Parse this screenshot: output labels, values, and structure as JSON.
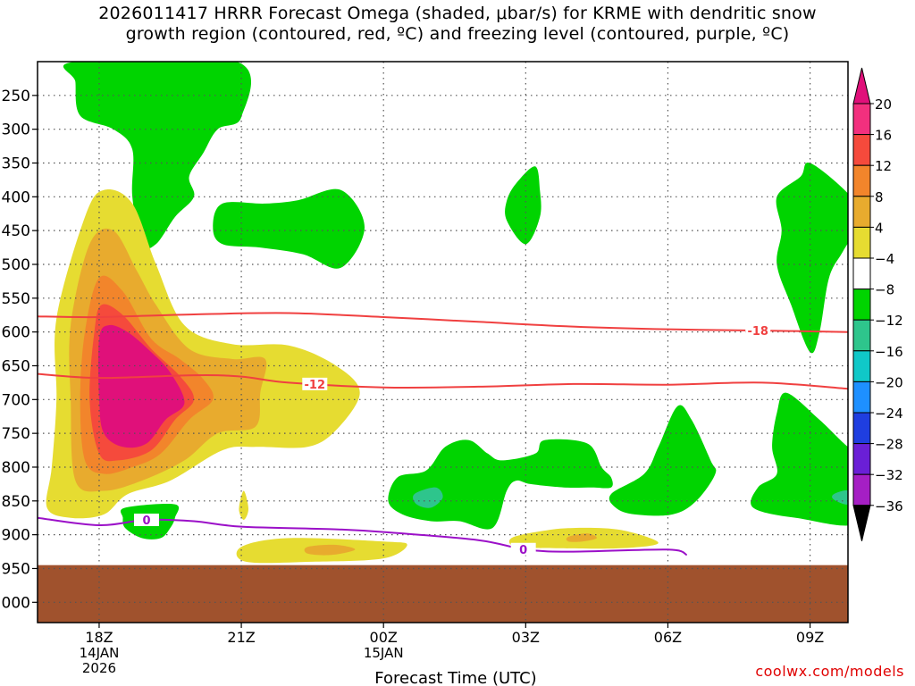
{
  "title_line1": "2026011417 HRRR Forecast Omega (shaded, μbar/s) for KRME with dendritic snow",
  "title_line2": "growth region (contoured, red, ºC) and freezing level (contoured, purple, ºC)",
  "credit": "coolwx.com/models",
  "chart_data": {
    "type": "time-height cross section",
    "title": "2026011417 HRRR Forecast Omega (shaded, μbar/s) for KRME with dendritic snow growth region (contoured, red, ºC) and freezing level (contoured, purple, ºC)",
    "xlabel": "Forecast Time (UTC)",
    "ylabel": "",
    "grid": true,
    "x_range_hours_from_18Z": [
      -1.3,
      15.8
    ],
    "y_range_hPa": [
      1030,
      200
    ],
    "x_ticks": [
      {
        "hours": 0,
        "label": "18Z",
        "sub1": "14JAN",
        "sub2": "2026"
      },
      {
        "hours": 3,
        "label": "21Z",
        "sub1": "",
        "sub2": ""
      },
      {
        "hours": 6,
        "label": "00Z",
        "sub1": "15JAN",
        "sub2": ""
      },
      {
        "hours": 9,
        "label": "03Z",
        "sub1": "",
        "sub2": ""
      },
      {
        "hours": 12,
        "label": "06Z",
        "sub1": "",
        "sub2": ""
      },
      {
        "hours": 15,
        "label": "09Z",
        "sub1": "",
        "sub2": ""
      }
    ],
    "y_ticks": [
      {
        "p": 250,
        "label": "250"
      },
      {
        "p": 300,
        "label": "300"
      },
      {
        "p": 350,
        "label": "350"
      },
      {
        "p": 400,
        "label": "400"
      },
      {
        "p": 450,
        "label": "450"
      },
      {
        "p": 500,
        "label": "500"
      },
      {
        "p": 550,
        "label": "550"
      },
      {
        "p": 600,
        "label": "600"
      },
      {
        "p": 650,
        "label": "650"
      },
      {
        "p": 700,
        "label": "700"
      },
      {
        "p": 750,
        "label": "750"
      },
      {
        "p": 800,
        "label": "800"
      },
      {
        "p": 850,
        "label": "850"
      },
      {
        "p": 900,
        "label": "900"
      },
      {
        "p": 950,
        "label": "950"
      },
      {
        "p": 1000,
        "label": "1000"
      }
    ],
    "colorbar": [
      {
        "label": "20",
        "color": "#f2307e"
      },
      {
        "label": "16",
        "color": "#f54a3c"
      },
      {
        "label": "12",
        "color": "#f2852b"
      },
      {
        "label": "8",
        "color": "#e8ab2e"
      },
      {
        "label": "4",
        "color": "#e6dc31"
      },
      {
        "label": "−4",
        "color": "#ffffff"
      },
      {
        "label": "−8",
        "color": "#00d400"
      },
      {
        "label": "−12",
        "color": "#2ec58c"
      },
      {
        "label": "−16",
        "color": "#10c8c8"
      },
      {
        "label": "−20",
        "color": "#1e90ff"
      },
      {
        "label": "−24",
        "color": "#1f3ee0"
      },
      {
        "label": "−28",
        "color": "#6a1fd6"
      },
      {
        "label": "−32",
        "color": "#a51fc4"
      },
      {
        "label": "−36",
        "color": "#a9a9a9"
      }
    ],
    "colorbar_top_color": "#e0107a",
    "colorbar_bottom_color": "#000000",
    "terrain_color": "#a0522d",
    "contours": [
      {
        "name": "-18C",
        "color": "#f04040",
        "label": "-18",
        "points": [
          [
            -1.3,
            577
          ],
          [
            0,
            578
          ],
          [
            2,
            574
          ],
          [
            4,
            572
          ],
          [
            6,
            578
          ],
          [
            8,
            585
          ],
          [
            10,
            592
          ],
          [
            12,
            596
          ],
          [
            14,
            598
          ],
          [
            15.8,
            600
          ]
        ],
        "label_at_hours": 13.9
      },
      {
        "name": "-12C",
        "color": "#f04040",
        "label": "-12",
        "points": [
          [
            -1.3,
            662
          ],
          [
            0,
            668
          ],
          [
            2,
            664
          ],
          [
            3,
            666
          ],
          [
            4,
            675
          ],
          [
            6,
            682
          ],
          [
            8,
            681
          ],
          [
            10,
            677
          ],
          [
            12,
            678
          ],
          [
            14,
            675
          ],
          [
            15.8,
            684
          ]
        ],
        "label_at_hours": 4.55
      },
      {
        "name": "freezing level 0C",
        "color": "#9b10c8",
        "label": "0",
        "points": [
          [
            -1.3,
            875
          ],
          [
            0,
            886
          ],
          [
            1,
            878
          ],
          [
            2,
            880
          ],
          [
            3,
            888
          ],
          [
            5,
            892
          ],
          [
            6,
            896
          ],
          [
            8,
            908
          ],
          [
            9,
            922
          ],
          [
            10,
            925
          ],
          [
            12,
            922
          ],
          [
            12.4,
            930
          ]
        ],
        "label_at_hours": 1.0,
        "label2": "0",
        "label2_at_hours": 8.95
      }
    ],
    "omega_regions": [
      {
        "value_band": "-8 to -4",
        "color": "#00d400",
        "points": [
          [
            -0.5,
            200
          ],
          [
            2.9,
            200
          ],
          [
            3,
            282
          ],
          [
            2.5,
            300
          ],
          [
            2.2,
            335
          ],
          [
            1.9,
            370
          ],
          [
            2,
            400
          ],
          [
            1.6,
            430
          ],
          [
            1.2,
            470
          ],
          [
            0.9,
            470
          ],
          [
            0.7,
            400
          ],
          [
            0.7,
            330
          ],
          [
            0.3,
            300
          ],
          [
            -0.4,
            280
          ],
          [
            -0.5,
            230
          ]
        ]
      },
      {
        "value_band": "-8 to -4",
        "color": "#00d400",
        "points": [
          [
            2.6,
            410
          ],
          [
            3.5,
            410
          ],
          [
            4.2,
            405
          ],
          [
            5.1,
            390
          ],
          [
            5.6,
            445
          ],
          [
            5.1,
            505
          ],
          [
            4.3,
            485
          ],
          [
            3.4,
            475
          ],
          [
            2.6,
            470
          ],
          [
            2.4,
            445
          ]
        ]
      },
      {
        "value_band": "-8 to -4",
        "color": "#00d400",
        "points": [
          [
            8.6,
            406
          ],
          [
            8.8,
            380
          ],
          [
            9.2,
            355
          ],
          [
            9.3,
            390
          ],
          [
            9.3,
            430
          ],
          [
            9,
            470
          ],
          [
            8.6,
            435
          ]
        ]
      },
      {
        "value_band": "-8 to -4",
        "color": "#00d400",
        "points": [
          [
            14.3,
            400
          ],
          [
            14.8,
            370
          ],
          [
            15,
            350
          ],
          [
            15.8,
            395
          ],
          [
            16.1,
            430
          ],
          [
            15.7,
            480
          ],
          [
            15.4,
            520
          ],
          [
            15.2,
            600
          ],
          [
            15,
            630
          ],
          [
            14.6,
            560
          ],
          [
            14.3,
            500
          ],
          [
            14.4,
            450
          ]
        ]
      },
      {
        "value_band": "-8 to -4",
        "color": "#00d400",
        "points": [
          [
            6.1,
            850
          ],
          [
            6.3,
            815
          ],
          [
            6.9,
            805
          ],
          [
            7.3,
            770
          ],
          [
            7.8,
            760
          ],
          [
            8.2,
            780
          ],
          [
            8.5,
            790
          ],
          [
            9.2,
            780
          ],
          [
            9.4,
            760
          ],
          [
            10.3,
            765
          ],
          [
            10.6,
            800
          ],
          [
            10.8,
            815
          ],
          [
            10.8,
            830
          ],
          [
            10.4,
            830
          ],
          [
            9.8,
            830
          ],
          [
            9.1,
            825
          ],
          [
            8.8,
            820
          ],
          [
            8.6,
            835
          ],
          [
            8.3,
            890
          ],
          [
            7.6,
            880
          ],
          [
            7,
            880
          ],
          [
            6.4,
            870
          ]
        ]
      },
      {
        "value_band": "-8 to -4",
        "color": "#00d400",
        "points": [
          [
            10.8,
            840
          ],
          [
            11.5,
            810
          ],
          [
            11.8,
            770
          ],
          [
            12.2,
            710
          ],
          [
            12.5,
            730
          ],
          [
            12.9,
            790
          ],
          [
            13,
            810
          ],
          [
            12.6,
            850
          ],
          [
            12.1,
            870
          ],
          [
            11.3,
            870
          ],
          [
            10.9,
            860
          ]
        ]
      },
      {
        "value_band": "-8 to -4",
        "color": "#00d400",
        "points": [
          [
            14.3,
            720
          ],
          [
            14.5,
            690
          ],
          [
            15.2,
            730
          ],
          [
            15.8,
            770
          ],
          [
            16.1,
            780
          ],
          [
            16.1,
            880
          ],
          [
            14.7,
            875
          ],
          [
            13.8,
            860
          ],
          [
            13.9,
            830
          ],
          [
            14.3,
            810
          ],
          [
            14.2,
            770
          ]
        ]
      },
      {
        "value_band": "-8 to -4",
        "color": "#00d400",
        "points": [
          [
            0.55,
            860
          ],
          [
            1.6,
            855
          ],
          [
            1.6,
            875
          ],
          [
            1.5,
            890
          ],
          [
            1.3,
            905
          ],
          [
            0.9,
            905
          ],
          [
            0.55,
            890
          ],
          [
            0.5,
            875
          ]
        ]
      },
      {
        "value_band": "-12 to -8",
        "color": "#2ec58c",
        "points": [
          [
            6.65,
            840
          ],
          [
            7.1,
            830
          ],
          [
            7.25,
            845
          ],
          [
            7.0,
            860
          ],
          [
            6.7,
            855
          ]
        ]
      },
      {
        "value_band": "-12 to -8",
        "color": "#2ec58c",
        "points": [
          [
            15.5,
            840
          ],
          [
            15.8,
            835
          ],
          [
            15.8,
            855
          ],
          [
            15.5,
            848
          ]
        ]
      },
      {
        "value_band": "4 to 8",
        "color": "#e6dc31",
        "points": [
          [
            -0.9,
            580
          ],
          [
            -0.3,
            430
          ],
          [
            0.1,
            390
          ],
          [
            0.7,
            410
          ],
          [
            1.2,
            500
          ],
          [
            1.8,
            590
          ],
          [
            2.8,
            618
          ],
          [
            4,
            620
          ],
          [
            5,
            650
          ],
          [
            5.5,
            690
          ],
          [
            5,
            745
          ],
          [
            4.4,
            770
          ],
          [
            3.3,
            770
          ],
          [
            2.6,
            775
          ],
          [
            1.5,
            820
          ],
          [
            0.6,
            840
          ],
          [
            0.1,
            870
          ],
          [
            -0.6,
            875
          ],
          [
            -1.1,
            860
          ],
          [
            -1.0,
            800
          ],
          [
            -0.9,
            700
          ]
        ]
      },
      {
        "value_band": "4 to 8",
        "color": "#e6dc31",
        "points": [
          [
            3.05,
            835
          ],
          [
            3.15,
            862
          ],
          [
            3.05,
            878
          ],
          [
            2.95,
            862
          ]
        ]
      },
      {
        "value_band": "4 to 8",
        "color": "#e6dc31",
        "points": [
          [
            3.0,
            918
          ],
          [
            4,
            905
          ],
          [
            6,
            910
          ],
          [
            6.5,
            915
          ],
          [
            6.0,
            935
          ],
          [
            4.5,
            940
          ],
          [
            3.1,
            940
          ]
        ]
      },
      {
        "value_band": "4 to 8",
        "color": "#e6dc31",
        "points": [
          [
            8.7,
            905
          ],
          [
            9.3,
            895
          ],
          [
            10,
            890
          ],
          [
            11,
            893
          ],
          [
            11.8,
            912
          ],
          [
            11,
            920
          ],
          [
            9.7,
            920
          ],
          [
            8.8,
            918
          ]
        ]
      },
      {
        "value_band": "8 to 12",
        "color": "#e8ab2e",
        "points": [
          [
            -0.6,
            590
          ],
          [
            -0.2,
            470
          ],
          [
            0.3,
            450
          ],
          [
            0.8,
            510
          ],
          [
            1.2,
            560
          ],
          [
            1.9,
            625
          ],
          [
            2.8,
            640
          ],
          [
            3.5,
            640
          ],
          [
            3.4,
            690
          ],
          [
            3.3,
            740
          ],
          [
            2.5,
            750
          ],
          [
            1.8,
            790
          ],
          [
            0.9,
            820
          ],
          [
            0.1,
            835
          ],
          [
            -0.5,
            820
          ],
          [
            -0.6,
            700
          ]
        ]
      },
      {
        "value_band": "8 to 12",
        "color": "#e8ab2e",
        "points": [
          [
            4.4,
            918
          ],
          [
            5.0,
            915
          ],
          [
            5.4,
            922
          ],
          [
            4.9,
            930
          ],
          [
            4.4,
            928
          ]
        ]
      },
      {
        "value_band": "8 to 12",
        "color": "#e8ab2e",
        "points": [
          [
            9.9,
            903
          ],
          [
            10.3,
            898
          ],
          [
            10.5,
            905
          ],
          [
            10.2,
            910
          ],
          [
            9.9,
            910
          ]
        ]
      },
      {
        "value_band": "12 to 16",
        "color": "#f2852b",
        "points": [
          [
            -0.3,
            600
          ],
          [
            0,
            520
          ],
          [
            0.5,
            540
          ],
          [
            1.1,
            610
          ],
          [
            1.7,
            640
          ],
          [
            2.2,
            670
          ],
          [
            2.4,
            700
          ],
          [
            1.9,
            730
          ],
          [
            1.3,
            780
          ],
          [
            0.7,
            800
          ],
          [
            0.1,
            810
          ],
          [
            -0.3,
            790
          ],
          [
            -0.4,
            700
          ]
        ]
      },
      {
        "value_band": "16 to 20",
        "color": "#f54a3c",
        "points": [
          [
            -0.1,
            600
          ],
          [
            0.05,
            560
          ],
          [
            0.5,
            575
          ],
          [
            1.1,
            625
          ],
          [
            1.7,
            665
          ],
          [
            2.0,
            700
          ],
          [
            1.6,
            730
          ],
          [
            1.1,
            775
          ],
          [
            0.4,
            790
          ],
          [
            0,
            780
          ],
          [
            -0.2,
            700
          ]
        ]
      },
      {
        "value_band": ">20",
        "color": "#e0107a",
        "points": [
          [
            0.0,
            610
          ],
          [
            0.2,
            590
          ],
          [
            0.6,
            600
          ],
          [
            1.1,
            630
          ],
          [
            1.5,
            660
          ],
          [
            1.8,
            705
          ],
          [
            1.4,
            730
          ],
          [
            1.0,
            765
          ],
          [
            0.5,
            770
          ],
          [
            0.1,
            750
          ],
          [
            0,
            700
          ]
        ]
      }
    ]
  }
}
